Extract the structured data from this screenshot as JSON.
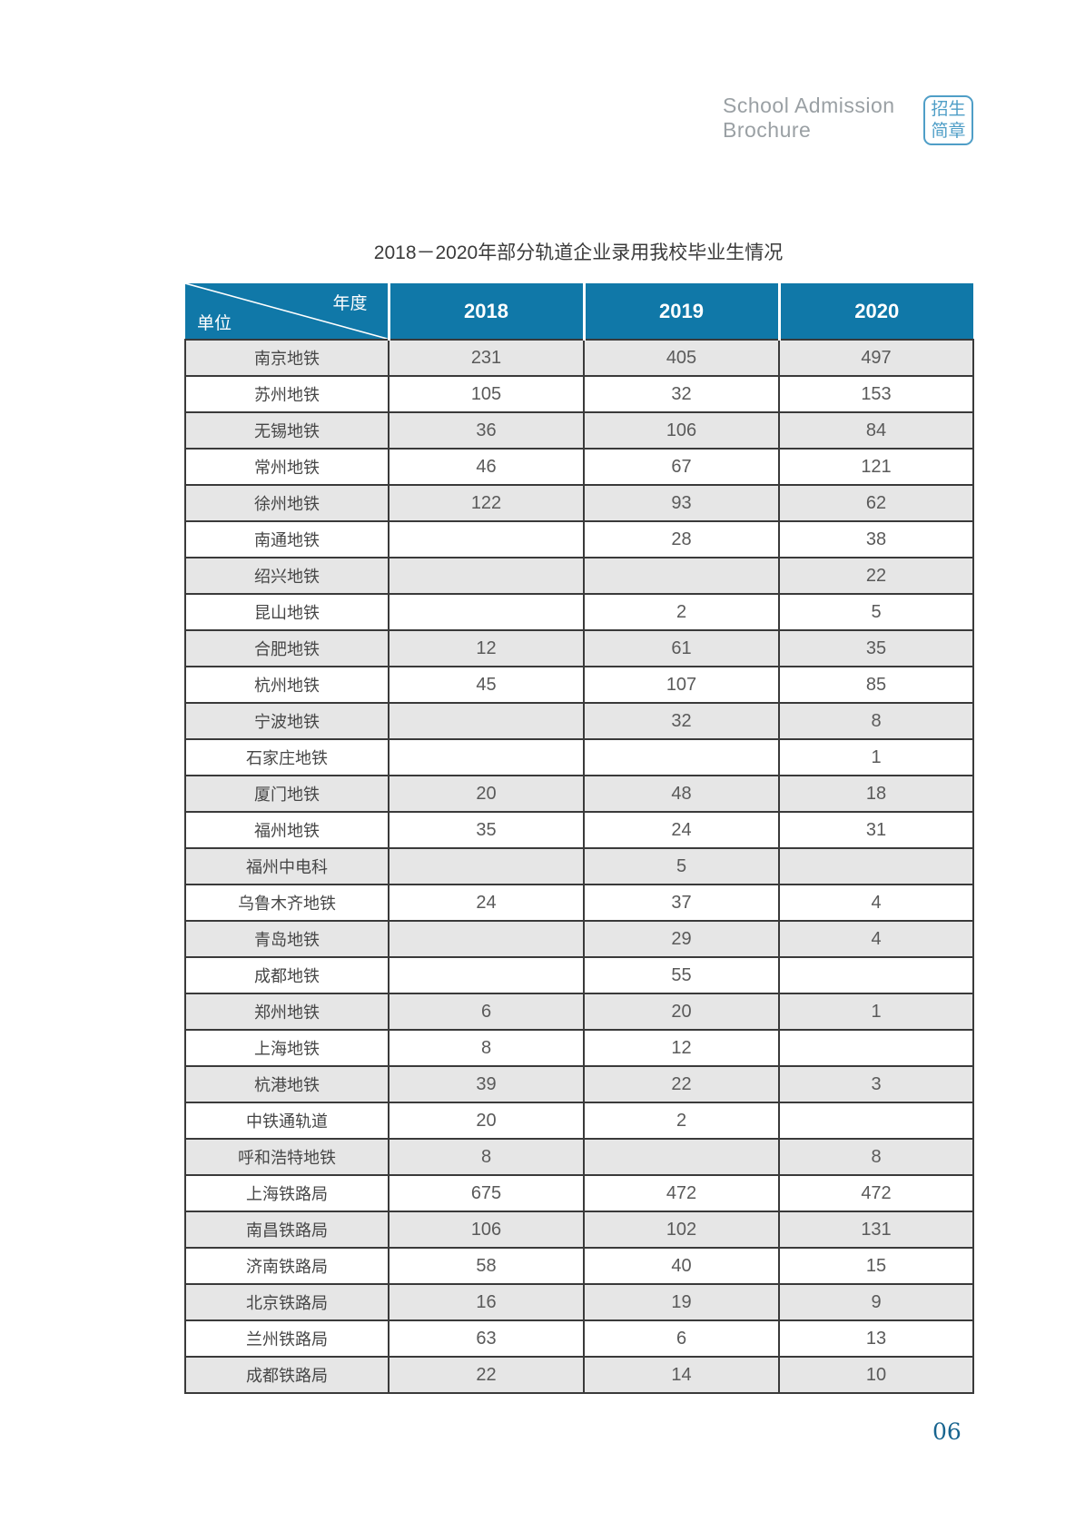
{
  "page_header": {
    "brand_line1": "School Admission",
    "brand_line2": "Brochure",
    "badge_line1": "招生",
    "badge_line2": "简章"
  },
  "table": {
    "title": "2018－2020年部分轨道企业录用我校毕业生情况",
    "corner": {
      "top_right": "年度",
      "bottom_left": "单位"
    },
    "columns": [
      "2018",
      "2019",
      "2020"
    ],
    "rows": [
      {
        "unit": "南京地铁",
        "values": [
          "231",
          "405",
          "497"
        ]
      },
      {
        "unit": "苏州地铁",
        "values": [
          "105",
          "32",
          "153"
        ]
      },
      {
        "unit": "无锡地铁",
        "values": [
          "36",
          "106",
          "84"
        ]
      },
      {
        "unit": "常州地铁",
        "values": [
          "46",
          "67",
          "121"
        ]
      },
      {
        "unit": "徐州地铁",
        "values": [
          "122",
          "93",
          "62"
        ]
      },
      {
        "unit": "南通地铁",
        "values": [
          "",
          "28",
          "38"
        ]
      },
      {
        "unit": "绍兴地铁",
        "values": [
          "",
          "",
          "22"
        ]
      },
      {
        "unit": "昆山地铁",
        "values": [
          "",
          "2",
          "5"
        ]
      },
      {
        "unit": "合肥地铁",
        "values": [
          "12",
          "61",
          "35"
        ]
      },
      {
        "unit": "杭州地铁",
        "values": [
          "45",
          "107",
          "85"
        ]
      },
      {
        "unit": "宁波地铁",
        "values": [
          "",
          "32",
          "8"
        ]
      },
      {
        "unit": "石家庄地铁",
        "values": [
          "",
          "",
          "1"
        ]
      },
      {
        "unit": "厦门地铁",
        "values": [
          "20",
          "48",
          "18"
        ]
      },
      {
        "unit": "福州地铁",
        "values": [
          "35",
          "24",
          "31"
        ]
      },
      {
        "unit": "福州中电科",
        "values": [
          "",
          "5",
          ""
        ]
      },
      {
        "unit": "乌鲁木齐地铁",
        "values": [
          "24",
          "37",
          "4"
        ]
      },
      {
        "unit": "青岛地铁",
        "values": [
          "",
          "29",
          "4"
        ]
      },
      {
        "unit": "成都地铁",
        "values": [
          "",
          "55",
          ""
        ]
      },
      {
        "unit": "郑州地铁",
        "values": [
          "6",
          "20",
          "1"
        ]
      },
      {
        "unit": "上海地铁",
        "values": [
          "8",
          "12",
          ""
        ]
      },
      {
        "unit": "杭港地铁",
        "values": [
          "39",
          "22",
          "3"
        ]
      },
      {
        "unit": "中铁通轨道",
        "values": [
          "20",
          "2",
          ""
        ]
      },
      {
        "unit": "呼和浩特地铁",
        "values": [
          "8",
          "",
          "8"
        ]
      },
      {
        "unit": "上海铁路局",
        "values": [
          "675",
          "472",
          "472"
        ]
      },
      {
        "unit": "南昌铁路局",
        "values": [
          "106",
          "102",
          "131"
        ]
      },
      {
        "unit": "济南铁路局",
        "values": [
          "58",
          "40",
          "15"
        ]
      },
      {
        "unit": "北京铁路局",
        "values": [
          "16",
          "19",
          "9"
        ]
      },
      {
        "unit": "兰州铁路局",
        "values": [
          "63",
          "6",
          "13"
        ]
      },
      {
        "unit": "成都铁路局",
        "values": [
          "22",
          "14",
          "10"
        ]
      }
    ]
  },
  "footer": {
    "page_number": "06"
  },
  "colors": {
    "header_blue": "#1078a8",
    "row_alt_gray": "#e6e6e6",
    "border_dark": "#3a3a3a",
    "badge_blue": "#4f9ec7",
    "page_number_blue": "#17648f",
    "brand_text_gray": "#9aa0a4"
  }
}
